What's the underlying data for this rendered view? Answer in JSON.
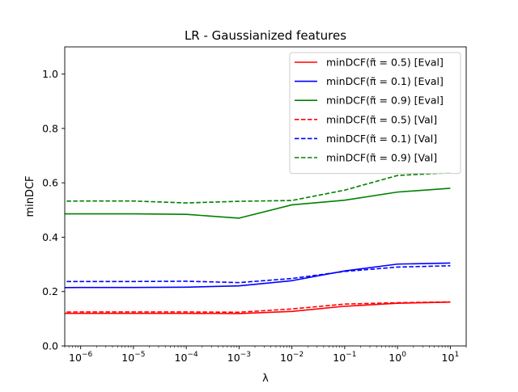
{
  "chart_data": {
    "type": "line",
    "title": "LR - Gaussianized features",
    "xlabel": "λ",
    "ylabel": "minDCF",
    "xscale": "log",
    "xlim": [
      5e-07,
      20
    ],
    "ylim": [
      0.0,
      1.1
    ],
    "x": [
      1e-07,
      1e-06,
      1e-05,
      0.0001,
      0.001,
      0.01,
      0.1,
      1,
      10
    ],
    "x_tick_labels": [
      {
        "exp": "-6",
        "value": 1e-06
      },
      {
        "exp": "-5",
        "value": 1e-05
      },
      {
        "exp": "-4",
        "value": 0.0001
      },
      {
        "exp": "-3",
        "value": 0.001
      },
      {
        "exp": "-2",
        "value": 0.01
      },
      {
        "exp": "-1",
        "value": 0.1
      },
      {
        "exp": "0",
        "value": 1
      },
      {
        "exp": "1",
        "value": 10
      }
    ],
    "y_ticks": [
      0.0,
      0.2,
      0.4,
      0.6,
      0.8,
      1.0
    ],
    "y_tick_labels": [
      "0.0",
      "0.2",
      "0.4",
      "0.6",
      "0.8",
      "1.0"
    ],
    "legend_position": "top-right",
    "grid": false,
    "series": [
      {
        "name": "minDCF(π̃ = 0.5) [Eval]",
        "color": "#ff0000",
        "dash": "solid",
        "values": [
          0.12,
          0.12,
          0.12,
          0.12,
          0.119,
          0.127,
          0.146,
          0.157,
          0.161
        ]
      },
      {
        "name": "minDCF(π̃ = 0.1) [Eval]",
        "color": "#0000ff",
        "dash": "solid",
        "values": [
          0.214,
          0.215,
          0.215,
          0.216,
          0.221,
          0.24,
          0.276,
          0.301,
          0.305
        ]
      },
      {
        "name": "minDCF(π̃ = 0.9) [Eval]",
        "color": "#008000",
        "dash": "solid",
        "values": [
          0.486,
          0.486,
          0.486,
          0.484,
          0.47,
          0.519,
          0.536,
          0.566,
          0.58
        ]
      },
      {
        "name": "minDCF(π̃ = 0.5) [Val]",
        "color": "#ff0000",
        "dash": "dashed",
        "values": [
          0.124,
          0.125,
          0.125,
          0.125,
          0.124,
          0.136,
          0.154,
          0.159,
          0.162
        ]
      },
      {
        "name": "minDCF(π̃ = 0.1) [Val]",
        "color": "#0000ff",
        "dash": "dashed",
        "values": [
          0.237,
          0.237,
          0.237,
          0.238,
          0.233,
          0.248,
          0.274,
          0.29,
          0.295
        ]
      },
      {
        "name": "minDCF(π̃ = 0.9) [Val]",
        "color": "#008000",
        "dash": "dashed",
        "values": [
          0.532,
          0.533,
          0.533,
          0.526,
          0.532,
          0.535,
          0.573,
          0.627,
          0.637
        ]
      }
    ]
  }
}
